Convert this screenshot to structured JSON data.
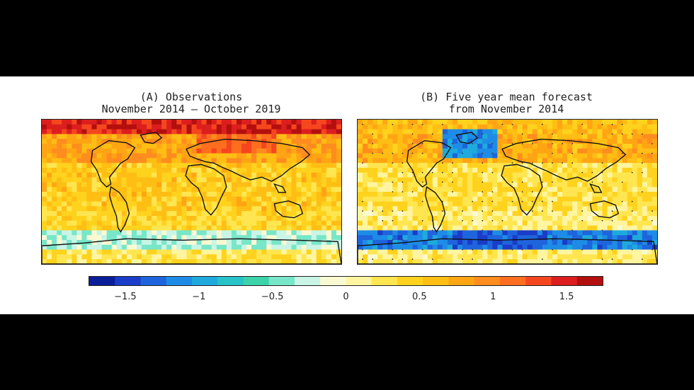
{
  "chart_data": [
    {
      "type": "heatmap",
      "panel": "A",
      "title": "(A) Observations",
      "subtitle": "November 2014 – October 2019",
      "grid": "global lat/lon map with coastlines",
      "stippling": false,
      "zones": [
        {
          "region": "Arctic band",
          "value": 1.5
        },
        {
          "region": "Siberia / northern Eurasia",
          "value": 1.3
        },
        {
          "region": "Northern mid-latitudes",
          "value": 0.8
        },
        {
          "region": "Tropics",
          "value": 0.5
        },
        {
          "region": "Southern mid-latitudes",
          "value": 0.4
        },
        {
          "region": "Southern Ocean",
          "value": -0.3
        },
        {
          "region": "Antarctica",
          "value": 0.3
        }
      ]
    },
    {
      "type": "heatmap",
      "panel": "B",
      "title": "(B) Five year mean forecast",
      "subtitle": "from November 2014",
      "grid": "global lat/lon map with coastlines",
      "stippling": true,
      "zones": [
        {
          "region": "Arctic band",
          "value": 0.6
        },
        {
          "region": "North Atlantic subpolar gyre",
          "value": -1.3
        },
        {
          "region": "Northern mid-latitudes",
          "value": 0.7
        },
        {
          "region": "Tropics",
          "value": 0.3
        },
        {
          "region": "Southern mid-latitudes",
          "value": 0.2
        },
        {
          "region": "Southern Ocean",
          "value": -1.2
        },
        {
          "region": "Antarctica",
          "value": 0.2
        }
      ]
    }
  ],
  "colorbar": {
    "min": -1.75,
    "max": 1.75,
    "ticks": [
      "−1.5",
      "−1",
      "−0.5",
      "0",
      "0.5",
      "1",
      "1.5"
    ],
    "tick_values": [
      -1.5,
      -1,
      -0.5,
      0,
      0.5,
      1,
      1.5
    ],
    "colors": [
      "#0a1e9a",
      "#1a3cc8",
      "#1e64dc",
      "#1e8ce6",
      "#1eaadc",
      "#28c3c8",
      "#3cd2aa",
      "#78e6c8",
      "#c8f5e6",
      "#fafad2",
      "#fff5a0",
      "#ffe650",
      "#ffd21e",
      "#ffbe14",
      "#ffa514",
      "#ff8c1e",
      "#ff6e1e",
      "#f5461e",
      "#dc1e1e",
      "#b40f0f"
    ]
  }
}
